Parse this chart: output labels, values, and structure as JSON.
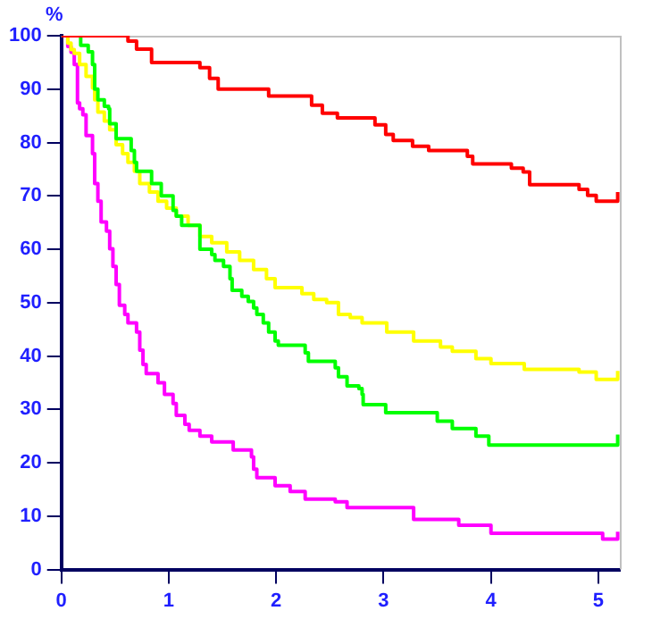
{
  "chart_data": {
    "type": "step",
    "ylabel": "%",
    "xlim": [
      0,
      5.2
    ],
    "xticks": [
      0,
      1,
      2,
      3,
      4,
      5
    ],
    "ylim": [
      0,
      100
    ],
    "yticks": [
      0,
      10,
      20,
      30,
      40,
      50,
      60,
      70,
      80,
      90,
      100
    ],
    "grid": false,
    "legend": false,
    "marker": "none",
    "line_style": "solid",
    "series": [
      {
        "color": "#ff0000",
        "x": [
          0,
          0.54,
          0.62,
          0.7,
          0.84,
          1.29,
          1.38,
          1.46,
          1.93,
          2.33,
          2.43,
          2.57,
          2.92,
          3.02,
          3.09,
          3.27,
          3.42,
          3.78,
          3.83,
          4.19,
          4.3,
          4.36,
          4.82,
          4.9,
          4.98,
          5.18
        ],
        "values": [
          100,
          100,
          99,
          97.5,
          95,
          94,
          92,
          90,
          88.7,
          87,
          85.5,
          84.6,
          83.3,
          81.5,
          80.4,
          79.3,
          78.5,
          77.4,
          76,
          75.2,
          74.5,
          72.1,
          71.2,
          70.1,
          69,
          70.7
        ]
      },
      {
        "color": "#00ff00",
        "x": [
          0,
          0.18,
          0.25,
          0.29,
          0.31,
          0.34,
          0.4,
          0.44,
          0.45,
          0.51,
          0.65,
          0.68,
          0.7,
          0.84,
          0.93,
          1.04,
          1.07,
          1.12,
          1.29,
          1.4,
          1.43,
          1.51,
          1.57,
          1.59,
          1.68,
          1.74,
          1.79,
          1.82,
          1.88,
          1.93,
          1.99,
          2.02,
          2.27,
          2.3,
          2.55,
          2.58,
          2.66,
          2.77,
          2.8,
          2.81,
          3.02,
          3.5,
          3.64,
          3.86,
          3.98,
          5.18
        ],
        "values": [
          100,
          98.2,
          97,
          94.6,
          90,
          88,
          86.8,
          86.3,
          83.5,
          80.7,
          78.5,
          76.3,
          74.6,
          72.3,
          70,
          67.3,
          66.2,
          64.5,
          60,
          59,
          57.9,
          56.8,
          54.5,
          52.3,
          51.2,
          50.2,
          49,
          47.8,
          46.2,
          44.5,
          42.8,
          42,
          40.6,
          39,
          37.8,
          36.1,
          34.4,
          33.9,
          32.8,
          30.9,
          29.4,
          27.8,
          26.4,
          25,
          23.3,
          25.3
        ]
      },
      {
        "color": "#ffff00",
        "x": [
          0,
          0.06,
          0.09,
          0.12,
          0.17,
          0.23,
          0.29,
          0.31,
          0.34,
          0.4,
          0.45,
          0.51,
          0.57,
          0.62,
          0.68,
          0.73,
          0.82,
          0.9,
          0.98,
          1.07,
          1.18,
          1.29,
          1.4,
          1.54,
          1.66,
          1.79,
          1.91,
          1.99,
          2.24,
          2.35,
          2.47,
          2.58,
          2.69,
          2.8,
          3.03,
          3.28,
          3.53,
          3.64,
          3.86,
          4.0,
          4.31,
          4.82,
          4.98,
          5.18
        ],
        "values": [
          100,
          98.6,
          97.4,
          96.7,
          94.6,
          92.4,
          90.2,
          88,
          85.7,
          84,
          82.4,
          79.6,
          77.9,
          76.3,
          74.6,
          72.3,
          70.7,
          69,
          67.7,
          66.2,
          64.5,
          62.4,
          61.2,
          59.5,
          57.9,
          56.2,
          54.5,
          52.8,
          51.7,
          50.6,
          50,
          47.8,
          47.2,
          46.2,
          44.5,
          42.8,
          41.7,
          40.9,
          39.5,
          38.6,
          37.5,
          37,
          35.6,
          37.2
        ]
      },
      {
        "color": "#ff00ff",
        "x": [
          0,
          0.06,
          0.09,
          0.12,
          0.15,
          0.17,
          0.2,
          0.23,
          0.29,
          0.31,
          0.34,
          0.37,
          0.42,
          0.45,
          0.48,
          0.51,
          0.54,
          0.59,
          0.62,
          0.7,
          0.73,
          0.76,
          0.79,
          0.9,
          0.96,
          1.04,
          1.07,
          1.15,
          1.19,
          1.29,
          1.4,
          1.6,
          1.77,
          1.79,
          1.82,
          1.99,
          2.13,
          2.27,
          2.55,
          2.66,
          3.28,
          3.7,
          4.0,
          5.04,
          5.18
        ],
        "values": [
          100,
          98,
          96.9,
          94.6,
          87.4,
          86.3,
          85.2,
          81.3,
          77.9,
          72.3,
          69,
          65.1,
          63.4,
          60.1,
          56.8,
          53.4,
          49.5,
          47.8,
          46.2,
          44.5,
          41.1,
          38.4,
          36.7,
          35,
          32.8,
          31.1,
          28.9,
          27.2,
          26.1,
          25,
          23.9,
          22.4,
          21.1,
          18.8,
          17.2,
          15.7,
          14.6,
          13.2,
          12.7,
          11.6,
          9.4,
          8.3,
          6.8,
          5.7,
          7.1
        ]
      }
    ]
  }
}
